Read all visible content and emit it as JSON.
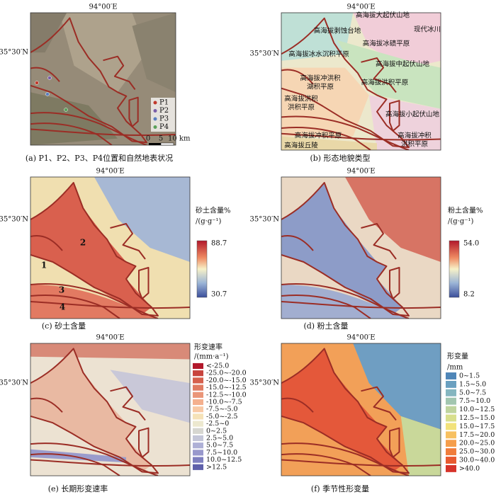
{
  "panels": [
    {
      "caption": "(a) P1、P2、P3、P4位置和自然地表状况",
      "lon": "94°00′E",
      "lat": "35°30′N",
      "points": [
        {
          "label": "P1",
          "color": "#c0392b"
        },
        {
          "label": "P2",
          "color": "#7a5ea8"
        },
        {
          "label": "P3",
          "color": "#5a7fc0"
        },
        {
          "label": "P4",
          "color": "#5aa05a"
        }
      ],
      "scale": [
        "0",
        "5",
        "10 km"
      ]
    },
    {
      "caption": "(b) 形态地貌类型",
      "lon": "94°00′E",
      "lat": "35°30′N",
      "landforms": [
        "高海拔大起伏山地",
        "现代冰川",
        "高海拔剥蚀台地",
        "高海拔冰碛平原",
        "高海拔冰水沉积平原",
        "高海拔中起伏山地",
        "高海拔冲洪积",
        "湖积平原",
        "高海拔洪积平原",
        "高海拔洪积",
        "洪积平原",
        "高海拔小起伏山地",
        "高海拔冲积平原",
        "高海拔丘陵",
        "高海拔冲积",
        "洪积平原"
      ]
    },
    {
      "caption": "(c) 砂土含量",
      "lon": "94°00′E",
      "lat": "35°30′N",
      "legend": {
        "title": "砂土含量%",
        "unit": "/(g·g⁻¹)",
        "max": "88.7",
        "min": "30.7"
      },
      "zones": [
        "1",
        "2",
        "3",
        "4"
      ]
    },
    {
      "caption": "(d) 粉土含量",
      "lon": "94°00′E",
      "lat": "35°30′N",
      "legend": {
        "title": "粉土含量%",
        "unit": "/(g·g⁻¹)",
        "max": "54.0",
        "min": "8.2"
      }
    },
    {
      "caption": "(e) 长期形变速率",
      "lon": "94°00′E",
      "lat": "35°30′N",
      "legend": {
        "title": "形变速率",
        "unit": "/(mm·a⁻¹)",
        "classes": [
          {
            "label": "<-25.0",
            "color": "#b2182b"
          },
          {
            "label": "-25.0~-20.0",
            "color": "#c8443e"
          },
          {
            "label": "-20.0~-15.0",
            "color": "#d6604d"
          },
          {
            "label": "-15.0~-12.5",
            "color": "#e07b62"
          },
          {
            "label": "-12.5~-10.0",
            "color": "#ea9679"
          },
          {
            "label": "-10.0~-7.5",
            "color": "#f4b08e"
          },
          {
            "label": "-7.5~-5.0",
            "color": "#f8c9a5"
          },
          {
            "label": "-5.0~-2.5",
            "color": "#f5e2b8"
          },
          {
            "label": "-2.5~0",
            "color": "#ece8cf"
          },
          {
            "label": "0~2.5",
            "color": "#d6d6d0"
          },
          {
            "label": "2.5~5.0",
            "color": "#c4c6d8"
          },
          {
            "label": "5.0~7.5",
            "color": "#aeb0d6"
          },
          {
            "label": "7.5~10.0",
            "color": "#9898cc"
          },
          {
            "label": "10.0~12.5",
            "color": "#7e7fbf"
          },
          {
            "label": ">12.5",
            "color": "#5e60aa"
          }
        ]
      }
    },
    {
      "caption": "(f) 季节性形变量",
      "lon": "94°00′E",
      "lat": "35°30′N",
      "legend": {
        "title": "形变量",
        "unit": "/mm",
        "classes": [
          {
            "label": "0~1.5",
            "color": "#4f86b8"
          },
          {
            "label": "1.5~5.0",
            "color": "#6aa0c0"
          },
          {
            "label": "5.0~7.5",
            "color": "#85b6c0"
          },
          {
            "label": "7.5~10.0",
            "color": "#a2c6b0"
          },
          {
            "label": "10.0~12.5",
            "color": "#bfd49e"
          },
          {
            "label": "12.5~15.0",
            "color": "#d8df8c"
          },
          {
            "label": "15.0~17.5",
            "color": "#f2e27a"
          },
          {
            "label": "17.5~20.0",
            "color": "#f7c060"
          },
          {
            "label": "20.0~25.0",
            "color": "#f59e4c"
          },
          {
            "label": "25.0~30.0",
            "color": "#f07d3c"
          },
          {
            "label": "30.0~40.0",
            "color": "#e85a30"
          },
          {
            "label": ">40.0",
            "color": "#d6332a"
          }
        ]
      }
    }
  ]
}
